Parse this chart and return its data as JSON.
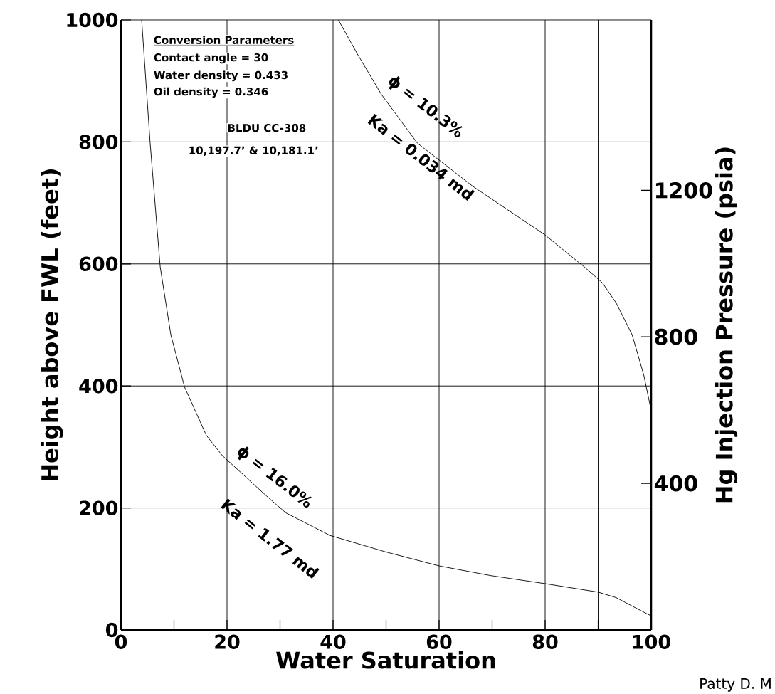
{
  "chart_data": {
    "type": "line",
    "xlabel": "Water Saturation",
    "ylabel": "Height above FWL (feet)",
    "y2label": "Hg Injection Pressure (psia)",
    "xlim": [
      0,
      100
    ],
    "ylim": [
      0,
      1000
    ],
    "y2lim": [
      0,
      1665
    ],
    "xticks": [
      0,
      {
        "value": 10,
        "label": null
      },
      20,
      {
        "value": 30,
        "label": null
      },
      40,
      {
        "value": 50,
        "label": null
      },
      60,
      {
        "value": 70,
        "label": null
      },
      80,
      {
        "value": 90,
        "label": null
      },
      100
    ],
    "yticks": [
      0,
      200,
      400,
      600,
      800,
      1000
    ],
    "y2ticks": [
      400,
      800,
      1200
    ],
    "grid": true,
    "series": [
      {
        "color": "#000000",
        "x": [
          3.9,
          5.5,
          7.4,
          9.4,
          12,
          16.1,
          19.1,
          27.4,
          31.1,
          39.4,
          49.9,
          60,
          69.8,
          79.9,
          90,
          93.4,
          97.1,
          100
        ],
        "values": [
          1000,
          798,
          595,
          484,
          398,
          319,
          286,
          220,
          192,
          155,
          128,
          105,
          89,
          76,
          62,
          53,
          36,
          23
        ]
      },
      {
        "color": "#000000",
        "x": [
          41,
          44.6,
          49.1,
          55.9,
          66.4,
          79.9,
          87.4,
          90.8,
          93.4,
          96.4,
          98.6,
          99.8,
          100
        ],
        "values": [
          1000,
          944,
          878,
          798,
          727,
          648,
          595,
          569,
          536,
          484,
          418,
          368,
          332
        ]
      }
    ],
    "annotations": [
      "Conversion Parameters",
      "Contact angle = 30",
      "Water density = 0.433",
      "Oil density = 0.346",
      "BLDU CC-308",
      "10,197.7’ & 10,181.1’",
      "ϕ = 16.0%",
      "Ka = 1.77 md",
      "ϕ = 10.3%",
      "Ka = 0.034 md",
      "Patty D. M"
    ]
  }
}
